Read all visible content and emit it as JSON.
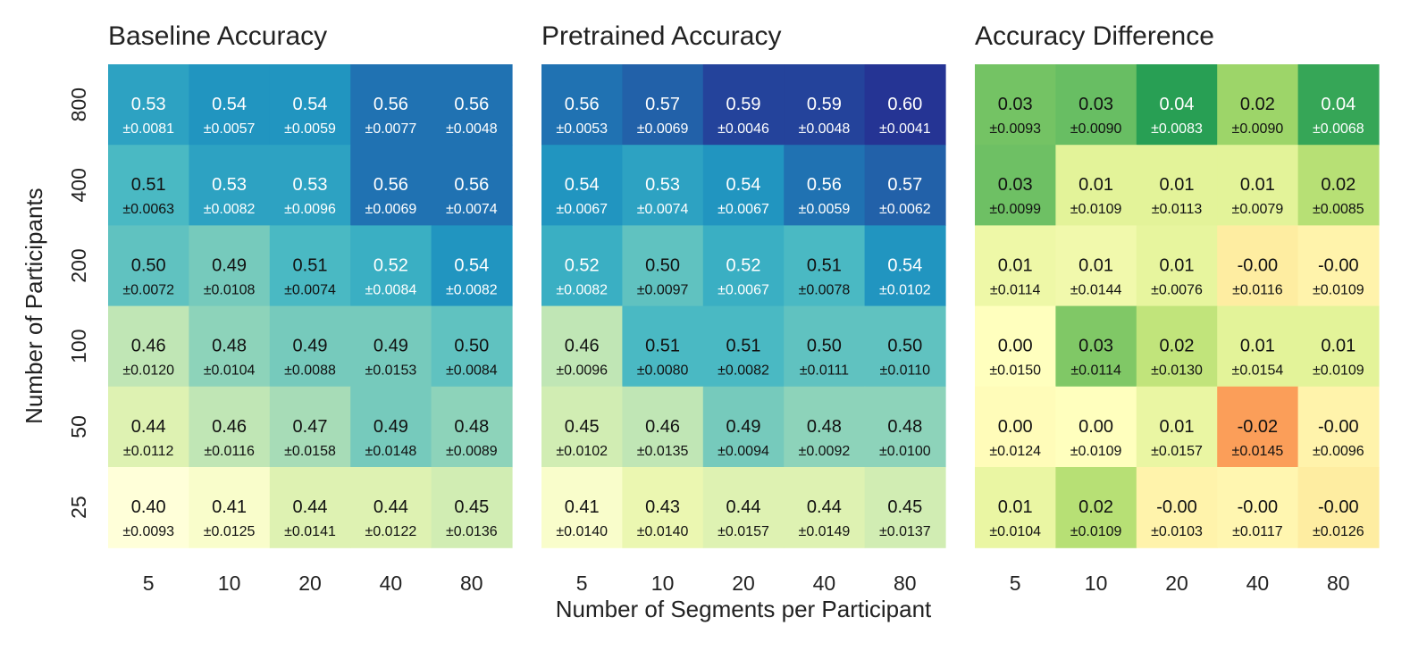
{
  "colors": {
    "sequential": [
      "#ffffd9",
      "#edf8b1",
      "#c7e9b4",
      "#7fcdbb",
      "#41b6c4",
      "#1d91c0",
      "#225ea8",
      "#253494"
    ],
    "diverging": [
      "#f46d43",
      "#fdae61",
      "#fee08b",
      "#ffffbf",
      "#d9ef8b",
      "#a6d96a",
      "#66bd63",
      "#1a9850"
    ]
  },
  "chart_data": [
    {
      "type": "heatmap",
      "title": "Baseline Accuracy",
      "colormap": "sequential",
      "vrange": [
        0.4,
        0.6
      ],
      "xlabel": "",
      "ylabel": "Number of Participants",
      "x": [
        "5",
        "10",
        "20",
        "40",
        "80"
      ],
      "y": [
        "800",
        "400",
        "200",
        "100",
        "50",
        "25"
      ],
      "values": [
        [
          "0.53",
          "0.54",
          "0.54",
          "0.56",
          "0.56"
        ],
        [
          "0.51",
          "0.53",
          "0.53",
          "0.56",
          "0.56"
        ],
        [
          "0.50",
          "0.49",
          "0.51",
          "0.52",
          "0.54"
        ],
        [
          "0.46",
          "0.48",
          "0.49",
          "0.49",
          "0.50"
        ],
        [
          "0.44",
          "0.46",
          "0.47",
          "0.49",
          "0.48"
        ],
        [
          "0.40",
          "0.41",
          "0.44",
          "0.44",
          "0.45"
        ]
      ],
      "errors": [
        [
          "±0.0081",
          "±0.0057",
          "±0.0059",
          "±0.0077",
          "±0.0048"
        ],
        [
          "±0.0063",
          "±0.0082",
          "±0.0096",
          "±0.0069",
          "±0.0074"
        ],
        [
          "±0.0072",
          "±0.0108",
          "±0.0074",
          "±0.0084",
          "±0.0082"
        ],
        [
          "±0.0120",
          "±0.0104",
          "±0.0088",
          "±0.0153",
          "±0.0084"
        ],
        [
          "±0.0112",
          "±0.0116",
          "±0.0158",
          "±0.0148",
          "±0.0089"
        ],
        [
          "±0.0093",
          "±0.0125",
          "±0.0141",
          "±0.0122",
          "±0.0136"
        ]
      ]
    },
    {
      "type": "heatmap",
      "title": "Pretrained Accuracy",
      "colormap": "sequential",
      "vrange": [
        0.4,
        0.6
      ],
      "xlabel": "Number of Segments per Participant",
      "ylabel": "",
      "x": [
        "5",
        "10",
        "20",
        "40",
        "80"
      ],
      "y": [
        "800",
        "400",
        "200",
        "100",
        "50",
        "25"
      ],
      "values": [
        [
          "0.56",
          "0.57",
          "0.59",
          "0.59",
          "0.60"
        ],
        [
          "0.54",
          "0.53",
          "0.54",
          "0.56",
          "0.57"
        ],
        [
          "0.52",
          "0.50",
          "0.52",
          "0.51",
          "0.54"
        ],
        [
          "0.46",
          "0.51",
          "0.51",
          "0.50",
          "0.50"
        ],
        [
          "0.45",
          "0.46",
          "0.49",
          "0.48",
          "0.48"
        ],
        [
          "0.41",
          "0.43",
          "0.44",
          "0.44",
          "0.45"
        ]
      ],
      "errors": [
        [
          "±0.0053",
          "±0.0069",
          "±0.0046",
          "±0.0048",
          "±0.0041"
        ],
        [
          "±0.0067",
          "±0.0074",
          "±0.0067",
          "±0.0059",
          "±0.0062"
        ],
        [
          "±0.0082",
          "±0.0097",
          "±0.0067",
          "±0.0078",
          "±0.0102"
        ],
        [
          "±0.0096",
          "±0.0080",
          "±0.0082",
          "±0.0111",
          "±0.0110"
        ],
        [
          "±0.0102",
          "±0.0135",
          "±0.0094",
          "±0.0092",
          "±0.0100"
        ],
        [
          "±0.0140",
          "±0.0140",
          "±0.0157",
          "±0.0149",
          "±0.0137"
        ]
      ]
    },
    {
      "type": "heatmap",
      "title": "Accuracy Difference",
      "colormap": "diverging",
      "vrange": [
        -0.03,
        0.045
      ],
      "xlabel": "",
      "ylabel": "",
      "x": [
        "5",
        "10",
        "20",
        "40",
        "80"
      ],
      "y": [
        "800",
        "400",
        "200",
        "100",
        "50",
        "25"
      ],
      "values": [
        [
          "0.03",
          "0.03",
          "0.04",
          "0.02",
          "0.04"
        ],
        [
          "0.03",
          "0.01",
          "0.01",
          "0.01",
          "0.02"
        ],
        [
          "0.01",
          "0.01",
          "0.01",
          "-0.00",
          "-0.00"
        ],
        [
          "0.00",
          "0.03",
          "0.02",
          "0.01",
          "0.01"
        ],
        [
          "0.00",
          "0.00",
          "0.01",
          "-0.02",
          "-0.00"
        ],
        [
          "0.01",
          "0.02",
          "-0.00",
          "-0.00",
          "-0.00"
        ]
      ],
      "errors": [
        [
          "±0.0093",
          "±0.0090",
          "±0.0083",
          "±0.0090",
          "±0.0068"
        ],
        [
          "±0.0099",
          "±0.0109",
          "±0.0113",
          "±0.0079",
          "±0.0085"
        ],
        [
          "±0.0114",
          "±0.0144",
          "±0.0076",
          "±0.0116",
          "±0.0109"
        ],
        [
          "±0.0150",
          "±0.0114",
          "±0.0130",
          "±0.0154",
          "±0.0109"
        ],
        [
          "±0.0124",
          "±0.0109",
          "±0.0157",
          "±0.0145",
          "±0.0096"
        ],
        [
          "±0.0104",
          "±0.0109",
          "±0.0103",
          "±0.0117",
          "±0.0126"
        ]
      ],
      "color_values": [
        [
          0.032,
          0.034,
          0.043,
          0.025,
          0.041
        ],
        [
          0.033,
          0.01,
          0.01,
          0.01,
          0.02
        ],
        [
          0.007,
          0.006,
          0.009,
          -0.004,
          -0.002
        ],
        [
          0.002,
          0.03,
          0.018,
          0.01,
          0.01
        ],
        [
          0.001,
          0.002,
          0.008,
          -0.022,
          -0.002
        ],
        [
          0.008,
          0.02,
          -0.002,
          -0.001,
          -0.004
        ]
      ]
    }
  ]
}
